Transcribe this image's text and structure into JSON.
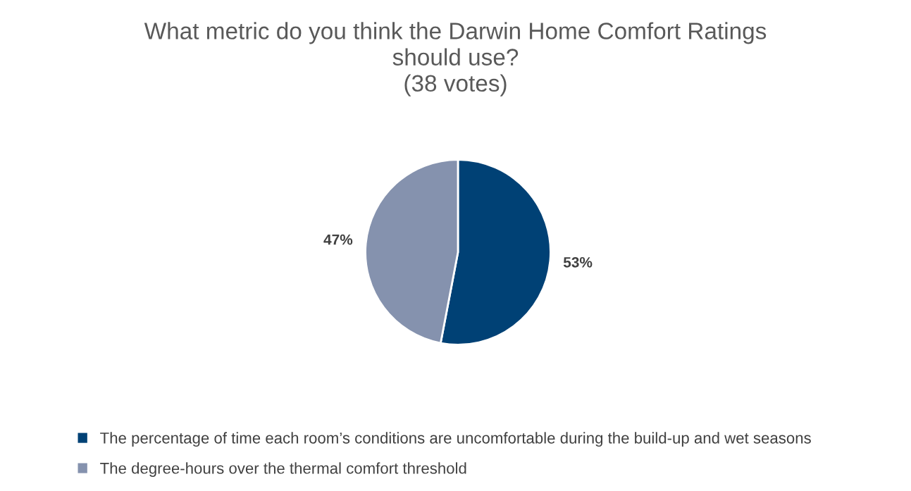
{
  "chart_data": {
    "type": "pie",
    "title": "What metric do you think the Darwin Home Comfort Ratings\nshould use?\n(38 votes)",
    "categories": [
      "The percentage of time each room’s conditions are uncomfortable during the build-up and wet seasons",
      "The degree-hours over the thermal comfort threshold"
    ],
    "values": [
      53,
      47
    ],
    "colors": [
      "#004175",
      "#8592ae"
    ],
    "value_labels": [
      "53%",
      "47%"
    ],
    "legend": "bottom"
  }
}
